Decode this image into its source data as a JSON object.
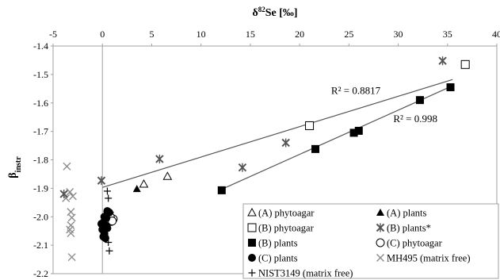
{
  "chart_data": {
    "type": "scatter",
    "xlabel": "δ82Se [‰]",
    "ylabel": "βinstr",
    "xlim": [
      -5,
      40
    ],
    "ylim": [
      -2.2,
      -1.4
    ],
    "x_ticks": [
      -5,
      0,
      5,
      10,
      15,
      20,
      25,
      30,
      35,
      40
    ],
    "y_ticks": [
      -1.4,
      -1.5,
      -1.6,
      -1.7,
      -1.8,
      -1.9,
      -2.0,
      -2.1,
      -2.2
    ],
    "x_axis_position": "top",
    "grid": false,
    "legend_position": "bottom-right",
    "series": [
      {
        "name": "(A) phytoagar",
        "marker": "open-triangle",
        "points": [
          [
            4.2,
            -1.885
          ],
          [
            6.6,
            -1.858
          ]
        ]
      },
      {
        "name": "(A) plants",
        "marker": "filled-triangle",
        "points": [
          [
            3.5,
            -1.902
          ]
        ]
      },
      {
        "name": "(B) phytoagar",
        "marker": "open-square",
        "points": [
          [
            36.8,
            -1.465
          ],
          [
            21.0,
            -1.68
          ]
        ]
      },
      {
        "name": "(B) plants*",
        "marker": "asterisk-x",
        "points": [
          [
            34.5,
            -1.452
          ],
          [
            5.8,
            -1.797
          ],
          [
            -0.1,
            -1.873
          ],
          [
            14.2,
            -1.827
          ],
          [
            18.6,
            -1.74
          ],
          [
            -3.9,
            -1.92
          ]
        ]
      },
      {
        "name": "(B) plants",
        "marker": "filled-square",
        "points": [
          [
            35.3,
            -1.545
          ],
          [
            32.2,
            -1.59
          ],
          [
            26.0,
            -1.698
          ],
          [
            25.5,
            -1.705
          ],
          [
            21.6,
            -1.762
          ],
          [
            12.1,
            -1.907
          ]
        ]
      },
      {
        "name": "(C) phytoagar",
        "marker": "open-circle",
        "points": [
          [
            1.1,
            -2.008
          ],
          [
            0.8,
            -2.0
          ],
          [
            1.0,
            -2.015
          ]
        ]
      },
      {
        "name": "(C) plants",
        "marker": "filled-circle",
        "points": [
          [
            0.5,
            -1.98
          ],
          [
            0.7,
            -1.985
          ],
          [
            0.2,
            -2.0
          ],
          [
            0.4,
            -2.005
          ],
          [
            0.1,
            -2.02
          ],
          [
            -0.1,
            -2.025
          ],
          [
            0.3,
            -2.03
          ],
          [
            0.0,
            -2.045
          ],
          [
            0.2,
            -2.06
          ],
          [
            0.1,
            -2.07
          ],
          [
            0.3,
            -2.075
          ],
          [
            0.5,
            -2.04
          ]
        ]
      },
      {
        "name": "MH495 (matrix free)",
        "marker": "x",
        "points": [
          [
            -3.6,
            -1.823
          ],
          [
            -3.3,
            -1.913
          ],
          [
            -3.0,
            -1.928
          ],
          [
            -3.7,
            -1.935
          ],
          [
            -3.2,
            -1.983
          ],
          [
            -3.1,
            -2.003
          ],
          [
            -3.2,
            -2.03
          ],
          [
            -3.3,
            -2.045
          ],
          [
            -3.2,
            -2.058
          ],
          [
            -3.1,
            -2.142
          ]
        ]
      },
      {
        "name": "NIST3149 (matrix free)",
        "marker": "plus",
        "points": [
          [
            0.5,
            -1.91
          ],
          [
            0.6,
            -1.935
          ],
          [
            0.8,
            -1.985
          ],
          [
            0.6,
            -2.0
          ],
          [
            0.7,
            -2.03
          ],
          [
            0.6,
            -2.09
          ],
          [
            0.7,
            -2.12
          ]
        ]
      }
    ],
    "trendlines": [
      {
        "label": "R² = 0.8817",
        "from": [
          0,
          -1.897
        ],
        "to": [
          35.5,
          -1.518
        ]
      },
      {
        "label": "R² = 0.998",
        "from": [
          12.0,
          -1.905
        ],
        "to": [
          35.5,
          -1.54
        ]
      }
    ],
    "annotation_positions_data": [
      {
        "label": "R² = 0.8817",
        "x": 23.2,
        "y": -1.568
      },
      {
        "label": "R² = 0.998",
        "x": 29.5,
        "y": -1.668
      }
    ]
  }
}
